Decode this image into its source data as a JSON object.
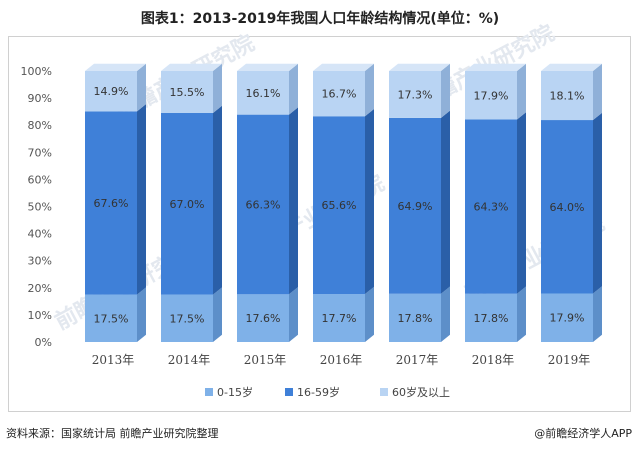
{
  "title": "图表1：2013-2019年我国人口年龄结构情况(单位：%)",
  "source": "资料来源：国家统计局 前瞻产业研究院整理",
  "credit": "@前瞻经济学人APP",
  "watermark": "前瞻产业研究院",
  "colors": {
    "seg_0_15": "#7fb1e8",
    "seg_16_59": "#3f80d8",
    "seg_60_plus": "#b9d4f3",
    "side_0_15": "#5d8fc9",
    "side_16_59": "#2a5fa8",
    "side_60_plus": "#8fb0d8"
  },
  "chart_data": {
    "type": "bar",
    "stacked": true,
    "percent": true,
    "categories": [
      "2013年",
      "2014年",
      "2015年",
      "2016年",
      "2017年",
      "2018年",
      "2019年"
    ],
    "series": [
      {
        "name": "0-15岁",
        "values": [
          17.5,
          17.5,
          17.6,
          17.7,
          17.8,
          17.8,
          17.9
        ],
        "labels": [
          "17.5%",
          "17.5%",
          "17.6%",
          "17.7%",
          "17.8%",
          "17.8%",
          "17.9%"
        ]
      },
      {
        "name": "16-59岁",
        "values": [
          67.6,
          67.0,
          66.3,
          65.6,
          64.9,
          64.3,
          64.0
        ],
        "labels": [
          "67.6%",
          "67.0%",
          "66.3%",
          "65.6%",
          "64.9%",
          "64.3%",
          "64.0%"
        ]
      },
      {
        "name": "60岁及以上",
        "values": [
          14.9,
          15.5,
          16.1,
          16.7,
          17.3,
          17.9,
          18.1
        ],
        "labels": [
          "14.9%",
          "15.5%",
          "16.1%",
          "16.7%",
          "17.3%",
          "17.9%",
          "18.1%"
        ]
      }
    ],
    "ylim": [
      0,
      100
    ],
    "yticks": [
      "0%",
      "10%",
      "20%",
      "30%",
      "40%",
      "50%",
      "60%",
      "70%",
      "80%",
      "90%",
      "100%"
    ],
    "legend_position": "bottom",
    "grid": false
  }
}
